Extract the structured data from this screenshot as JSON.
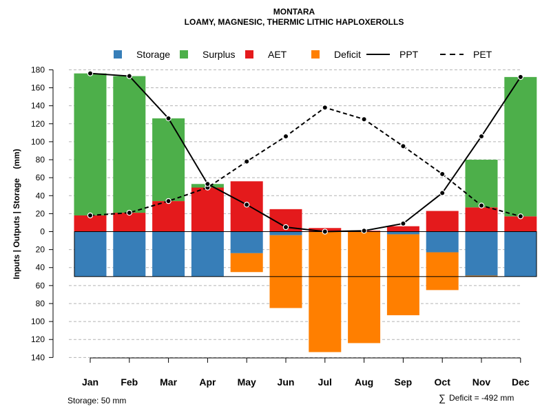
{
  "chart_data": {
    "type": "bar",
    "title": "MONTARA",
    "subtitle": "LOAMY, MAGNESIC, THERMIC LITHIC HAPLOXEROLLS",
    "ylabel": "Inputs | Outputs | Storage    (mm)",
    "categories": [
      "Jan",
      "Feb",
      "Mar",
      "Apr",
      "May",
      "Jun",
      "Jul",
      "Aug",
      "Sep",
      "Oct",
      "Nov",
      "Dec"
    ],
    "ylim": [
      -140,
      180
    ],
    "yticks": [
      {
        "value": 180,
        "label": "180"
      },
      {
        "value": 160,
        "label": "160"
      },
      {
        "value": 140,
        "label": "140"
      },
      {
        "value": 120,
        "label": "120"
      },
      {
        "value": 100,
        "label": "100"
      },
      {
        "value": 80,
        "label": "80"
      },
      {
        "value": 60,
        "label": "60"
      },
      {
        "value": 40,
        "label": "40"
      },
      {
        "value": 20,
        "label": "20"
      },
      {
        "value": 0,
        "label": "0"
      },
      {
        "value": -20,
        "label": "20"
      },
      {
        "value": -40,
        "label": "40"
      },
      {
        "value": -60,
        "label": "60"
      },
      {
        "value": -80,
        "label": "80"
      },
      {
        "value": -100,
        "label": "100"
      },
      {
        "value": -120,
        "label": "120"
      },
      {
        "value": -140,
        "label": "140"
      }
    ],
    "grid": true,
    "legend_position": "top",
    "legend": [
      {
        "name": "Storage",
        "kind": "box",
        "color": "#377eb8"
      },
      {
        "name": "Surplus",
        "kind": "box",
        "color": "#4daf4a"
      },
      {
        "name": "AET",
        "kind": "box",
        "color": "#e41a1c"
      },
      {
        "name": "Deficit",
        "kind": "box",
        "color": "#ff7f00"
      },
      {
        "name": "PPT",
        "kind": "solid",
        "color": "#000000"
      },
      {
        "name": "PET",
        "kind": "dashed",
        "color": "#000000"
      }
    ],
    "series": [
      {
        "name": "AET",
        "color": "#e41a1c",
        "values": [
          18,
          21,
          34,
          49,
          56,
          25,
          4,
          1,
          6,
          23,
          27,
          17
        ]
      },
      {
        "name": "Surplus",
        "color": "#4daf4a",
        "values": [
          158,
          152,
          92,
          4,
          0,
          0,
          0,
          0,
          0,
          0,
          53,
          155
        ]
      },
      {
        "name": "Storage",
        "color": "#377eb8",
        "values": [
          50,
          50,
          50,
          50,
          24,
          4,
          0,
          0,
          3,
          23,
          49,
          50
        ]
      },
      {
        "name": "Deficit",
        "color": "#ff7f00",
        "values": [
          0,
          0,
          0,
          0,
          -21,
          -81,
          -134,
          -124,
          -90,
          -42,
          -1,
          0
        ]
      },
      {
        "name": "PPT",
        "color": "#000000",
        "values": [
          176,
          173,
          126,
          53,
          30,
          5,
          0,
          1,
          9,
          43,
          106,
          172
        ]
      },
      {
        "name": "PET",
        "color": "#000000",
        "values": [
          18,
          21,
          34,
          49,
          78,
          106,
          138,
          125,
          95,
          64,
          29,
          17
        ]
      }
    ],
    "storage_capacity": 50,
    "annotations": {
      "storage_label": "Storage: 50 mm",
      "deficit_symbol": "∑",
      "deficit_label": "Deficit = -492 mm"
    }
  }
}
